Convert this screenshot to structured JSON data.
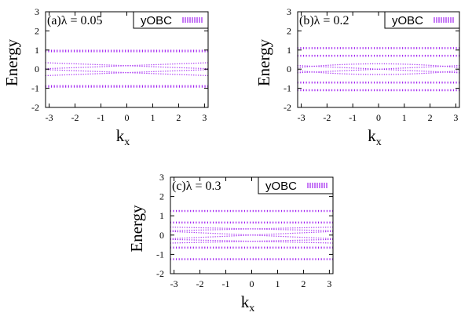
{
  "chart_data": [
    {
      "type": "scatter",
      "title": "(a)λ = 0.05",
      "legend": "yOBC",
      "legend_placement": "top-right",
      "xlabel": "k",
      "xlabel_sub": "x",
      "ylabel": "Energy",
      "xlim": [
        -3.14,
        3.14
      ],
      "ylim": [
        -2,
        3
      ],
      "xticks": [
        -3,
        -2,
        -1,
        0,
        1,
        2,
        3
      ],
      "yticks": [
        -2,
        -1,
        0,
        1,
        2,
        3
      ],
      "color": "#a020f0",
      "bulk_bands": [
        {
          "center": 0.95,
          "width": 0.13
        },
        {
          "center": -0.9,
          "width": 0.13
        }
      ],
      "edge_states": [
        {
          "e0": 0.18,
          "slope": -0.05,
          "curv": 0.0
        },
        {
          "e0": 0.18,
          "slope": 0.05,
          "curv": 0.0
        },
        {
          "e0": -0.18,
          "slope": -0.05,
          "curv": 0.0
        },
        {
          "e0": -0.18,
          "slope": 0.05,
          "curv": 0.0
        }
      ]
    },
    {
      "type": "scatter",
      "title": "(b)λ = 0.2",
      "legend": "yOBC",
      "legend_placement": "top-right",
      "xlabel": "k",
      "xlabel_sub": "x",
      "ylabel": "Energy",
      "xlim": [
        -3.14,
        3.14
      ],
      "ylim": [
        -2,
        3
      ],
      "xticks": [
        -3,
        -2,
        -1,
        0,
        1,
        2,
        3
      ],
      "yticks": [
        -2,
        -1,
        0,
        1,
        2,
        3
      ],
      "color": "#a020f0",
      "bulk_bands": [
        {
          "center": 1.1,
          "width": 0.1
        },
        {
          "center": 0.7,
          "width": 0.1
        },
        {
          "center": -0.7,
          "width": 0.1
        },
        {
          "center": -1.1,
          "width": 0.1
        }
      ],
      "edge_states": [
        {
          "e0": 0.28,
          "slope": 0.0,
          "curv": -0.02
        },
        {
          "e0": 0.0,
          "slope": 0.06,
          "curv": 0.0
        },
        {
          "e0": 0.0,
          "slope": -0.06,
          "curv": 0.0
        },
        {
          "e0": -0.28,
          "slope": 0.0,
          "curv": 0.02
        }
      ]
    },
    {
      "type": "scatter",
      "title": "(c)λ = 0.3",
      "legend": "yOBC",
      "legend_placement": "top-right",
      "xlabel": "k",
      "xlabel_sub": "x",
      "ylabel": "Energy",
      "xlim": [
        -3.14,
        3.14
      ],
      "ylim": [
        -2,
        3
      ],
      "xticks": [
        -3,
        -2,
        -1,
        0,
        1,
        2,
        3
      ],
      "yticks": [
        -2,
        -1,
        0,
        1,
        2,
        3
      ],
      "color": "#a020f0",
      "bulk_bands": [
        {
          "center": 1.25,
          "width": 0.1
        },
        {
          "center": 0.65,
          "width": 0.1
        },
        {
          "center": -0.65,
          "width": 0.1
        },
        {
          "center": -1.25,
          "width": 0.1
        }
      ],
      "edge_states": [
        {
          "e0": 0.32,
          "slope": -0.03,
          "curv": 0.0
        },
        {
          "e0": 0.32,
          "slope": 0.03,
          "curv": 0.0
        },
        {
          "e0": -0.32,
          "slope": -0.03,
          "curv": 0.0
        },
        {
          "e0": -0.32,
          "slope": 0.03,
          "curv": 0.0
        },
        {
          "e0": 0.0,
          "slope": 0.06,
          "curv": 0.0
        },
        {
          "e0": 0.0,
          "slope": -0.06,
          "curv": 0.0
        }
      ]
    }
  ]
}
